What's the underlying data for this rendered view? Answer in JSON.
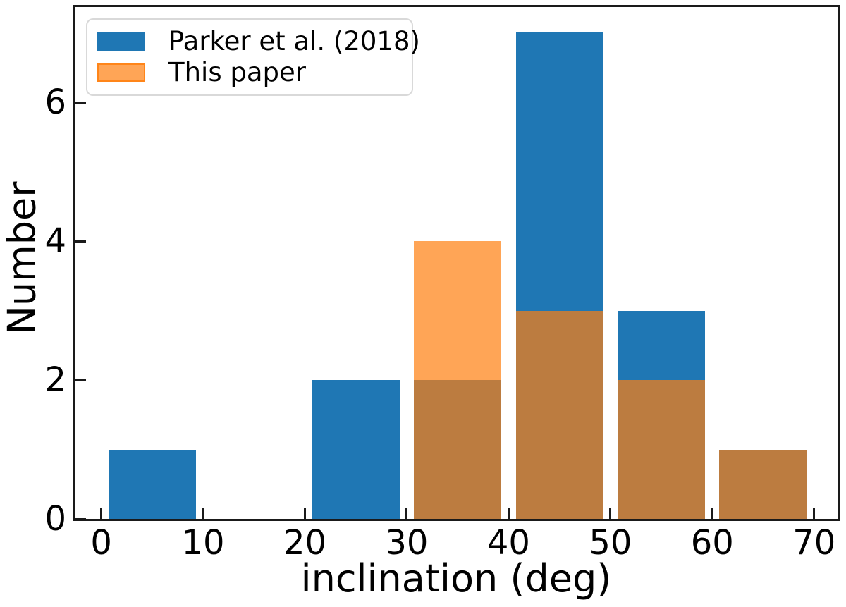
{
  "figure": {
    "background": "#ffffff",
    "spine_color": "#1a1a1a",
    "tick_color": "#1a1a1a",
    "text_color": "#000000",
    "legend_border_color": "#d9d9d9"
  },
  "chart_data": {
    "type": "bar",
    "subtype": "overlaid-histogram",
    "title": "",
    "xlabel": "inclination (deg)",
    "ylabel": "Number",
    "xlim": [
      -2.6,
      72.3
    ],
    "ylim": [
      0,
      7.37
    ],
    "x_ticks": [
      0,
      10,
      20,
      30,
      40,
      50,
      60,
      70
    ],
    "y_ticks": [
      0,
      2,
      4,
      6
    ],
    "grid": false,
    "legend_position": "upper-left",
    "bin_edges": [
      0,
      10,
      20,
      30,
      40,
      50,
      60,
      70
    ],
    "bar_rwidth": 0.86,
    "series": [
      {
        "name": "Parker et al. (2018)",
        "color": "#1f77b4",
        "alpha": 1.0,
        "values": [
          1,
          0,
          2,
          2,
          7,
          3,
          1
        ]
      },
      {
        "name": "This paper",
        "color": "#ff7f0e",
        "alpha": 0.7,
        "values": [
          0,
          0,
          0,
          4,
          3,
          2,
          1
        ]
      }
    ]
  }
}
